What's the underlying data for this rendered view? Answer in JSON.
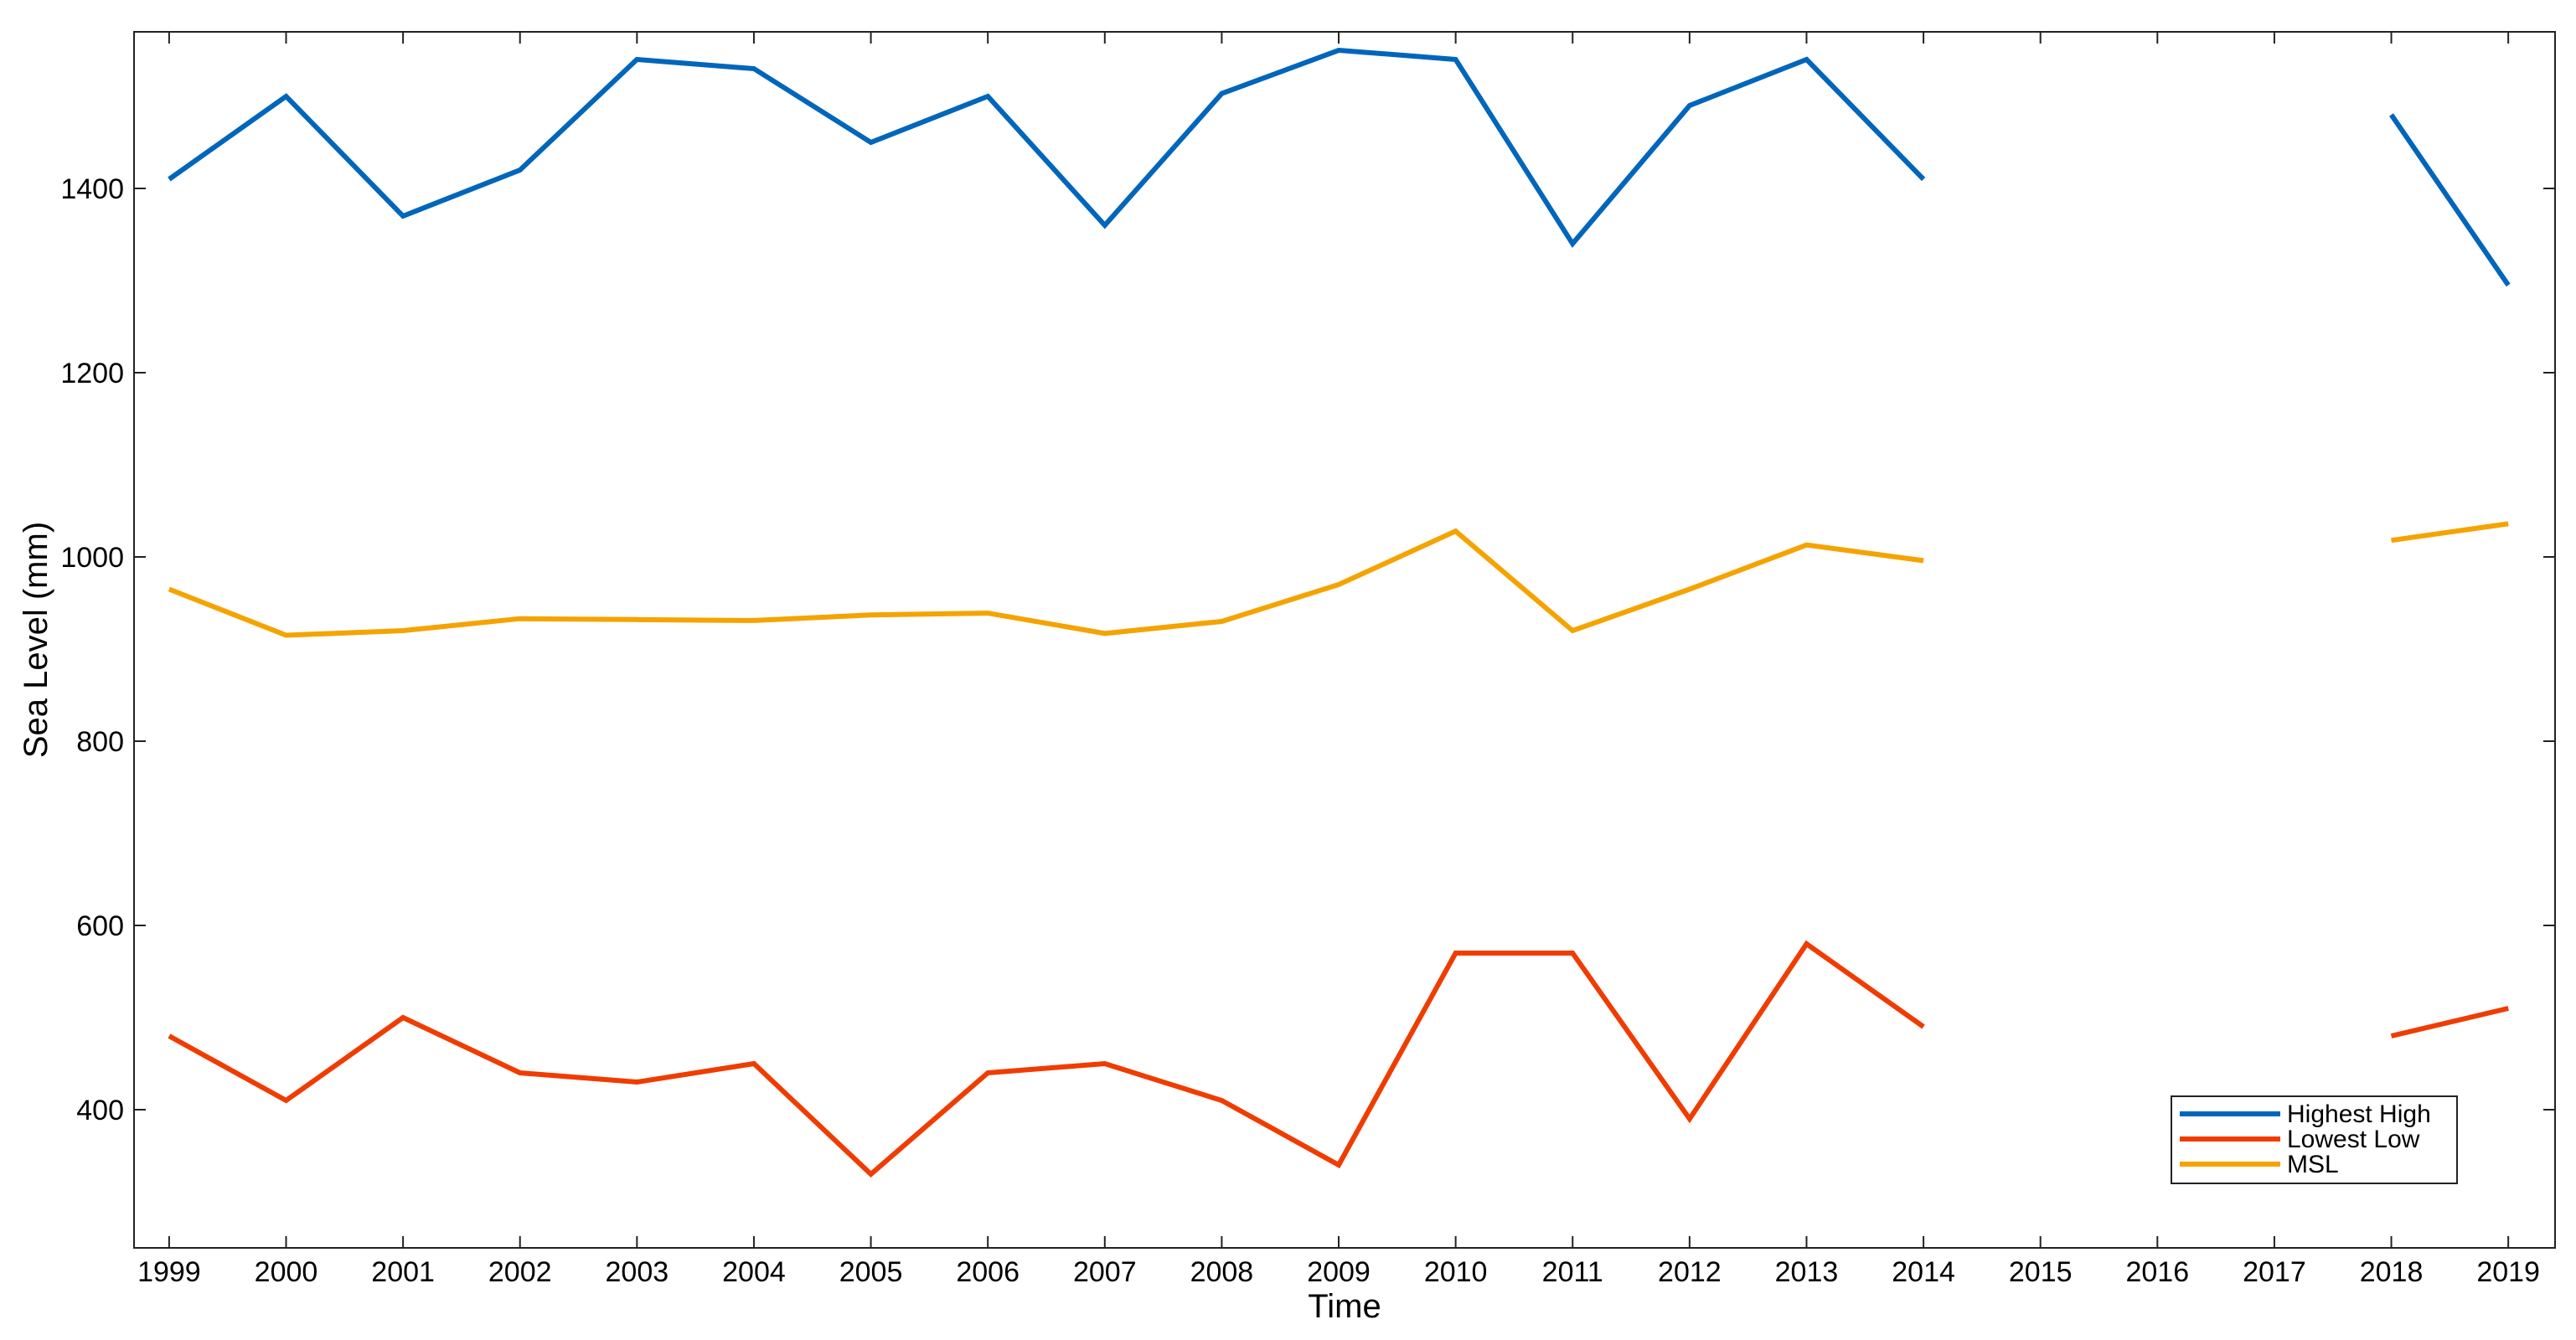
{
  "chart_data": {
    "type": "line",
    "title": "",
    "xlabel": "Time",
    "ylabel": "Sea Level (mm)",
    "x": [
      1999,
      2000,
      2001,
      2002,
      2003,
      2004,
      2005,
      2006,
      2007,
      2008,
      2009,
      2010,
      2011,
      2012,
      2013,
      2014,
      2015,
      2016,
      2017,
      2018,
      2019
    ],
    "xticks": [
      "1999",
      "2000",
      "2001",
      "2002",
      "2003",
      "2004",
      "2005",
      "2006",
      "2007",
      "2008",
      "2009",
      "2010",
      "2011",
      "2012",
      "2013",
      "2014",
      "2015",
      "2016",
      "2017",
      "2018",
      "2019"
    ],
    "xlim": [
      1998.7,
      2019.4
    ],
    "ylim": [
      250,
      1570
    ],
    "yticks": [
      400,
      600,
      800,
      1000,
      1200,
      1400
    ],
    "grid": false,
    "legend_position": "bottom-right",
    "series": [
      {
        "name": "Highest High",
        "color": "#0066bb",
        "values": [
          1410,
          1500,
          1370,
          1420,
          1540,
          1530,
          1450,
          1500,
          1360,
          1503,
          1550,
          1540,
          1340,
          1490,
          1540,
          1410,
          null,
          null,
          null,
          1480,
          1295
        ]
      },
      {
        "name": "Lowest Low",
        "color": "#f03c00",
        "values": [
          480,
          410,
          500,
          440,
          430,
          450,
          330,
          440,
          450,
          410,
          340,
          570,
          570,
          390,
          580,
          490,
          null,
          null,
          null,
          480,
          510
        ]
      },
      {
        "name": "MSL",
        "color": "#f5a300",
        "values": [
          965,
          915,
          920,
          933,
          932,
          931,
          937,
          939,
          917,
          930,
          970,
          1028,
          920,
          965,
          1013,
          996,
          null,
          null,
          null,
          1018,
          1036
        ]
      }
    ]
  }
}
